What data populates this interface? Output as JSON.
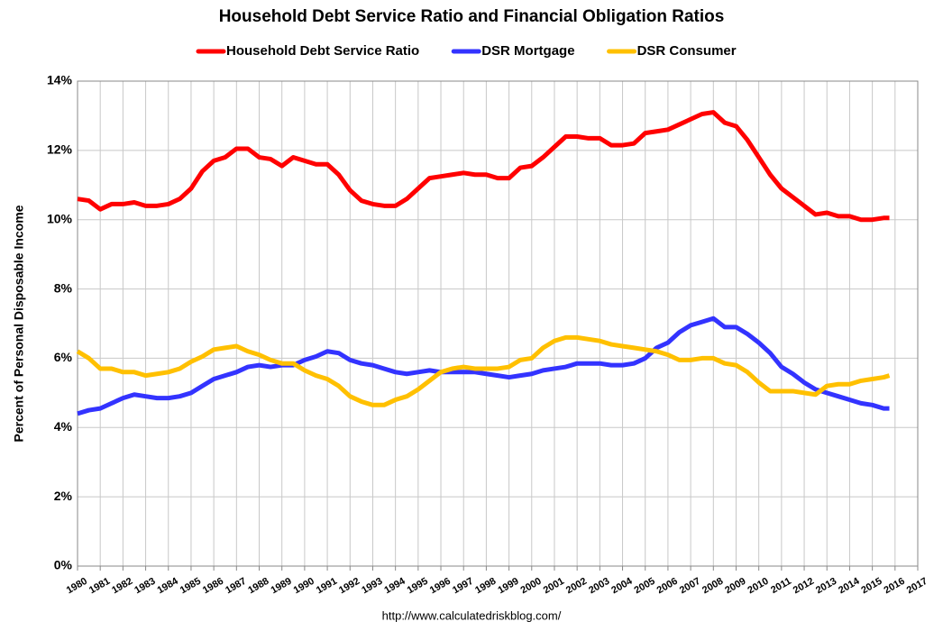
{
  "chart_data": {
    "type": "line",
    "title": "Household Debt Service Ratio and Financial Obligation Ratios",
    "ylabel": "Percent of Personal Disposable Income",
    "source": "http://www.calculatedriskblog.com/",
    "legend": "top",
    "grid": true,
    "xlim": [
      1980,
      2017
    ],
    "xticks": [
      1980,
      1981,
      1982,
      1983,
      1984,
      1985,
      1986,
      1987,
      1988,
      1989,
      1990,
      1991,
      1992,
      1993,
      1994,
      1995,
      1996,
      1997,
      1998,
      1999,
      2000,
      2001,
      2002,
      2003,
      2004,
      2005,
      2006,
      2007,
      2008,
      2009,
      2010,
      2011,
      2012,
      2013,
      2014,
      2015,
      2016,
      2017
    ],
    "ylim": [
      0,
      14
    ],
    "yticks": [
      {
        "value": 0,
        "label": "0%"
      },
      {
        "value": 2,
        "label": "2%"
      },
      {
        "value": 4,
        "label": "4%"
      },
      {
        "value": 6,
        "label": "6%"
      },
      {
        "value": 8,
        "label": "8%"
      },
      {
        "value": 10,
        "label": "10%"
      },
      {
        "value": 12,
        "label": "12%"
      },
      {
        "value": 14,
        "label": "14%"
      }
    ],
    "x": [
      1980,
      1980.5,
      1981,
      1981.5,
      1982,
      1982.5,
      1983,
      1983.5,
      1984,
      1984.5,
      1985,
      1985.5,
      1986,
      1986.5,
      1987,
      1987.5,
      1988,
      1988.5,
      1989,
      1989.5,
      1990,
      1990.5,
      1991,
      1991.5,
      1992,
      1992.5,
      1993,
      1993.5,
      1994,
      1994.5,
      1995,
      1995.5,
      1996,
      1996.5,
      1997,
      1997.5,
      1998,
      1998.5,
      1999,
      1999.5,
      2000,
      2000.5,
      2001,
      2001.5,
      2002,
      2002.5,
      2003,
      2003.5,
      2004,
      2004.5,
      2005,
      2005.5,
      2006,
      2006.5,
      2007,
      2007.5,
      2008,
      2008.5,
      2009,
      2009.5,
      2010,
      2010.5,
      2011,
      2011.5,
      2012,
      2012.5,
      2013,
      2013.5,
      2014,
      2014.5,
      2015,
      2015.5,
      2015.75
    ],
    "series": [
      {
        "name": "Household Debt Service Ratio",
        "color": "#ff0000",
        "values": [
          10.6,
          10.55,
          10.3,
          10.45,
          10.45,
          10.5,
          10.4,
          10.4,
          10.45,
          10.6,
          10.9,
          11.4,
          11.7,
          11.8,
          12.05,
          12.05,
          11.8,
          11.75,
          11.55,
          11.8,
          11.7,
          11.6,
          11.6,
          11.3,
          10.85,
          10.55,
          10.45,
          10.4,
          10.4,
          10.6,
          10.9,
          11.2,
          11.25,
          11.3,
          11.35,
          11.3,
          11.3,
          11.2,
          11.2,
          11.5,
          11.55,
          11.8,
          12.1,
          12.4,
          12.4,
          12.35,
          12.35,
          12.15,
          12.15,
          12.2,
          12.5,
          12.55,
          12.6,
          12.75,
          12.9,
          13.05,
          13.1,
          12.8,
          12.7,
          12.3,
          11.8,
          11.3,
          10.9,
          10.65,
          10.4,
          10.15,
          10.2,
          10.1,
          10.1,
          10.0,
          10.0,
          10.05,
          10.05
        ]
      },
      {
        "name": "DSR Mortgage",
        "color": "#3333ff",
        "values": [
          4.4,
          4.5,
          4.55,
          4.7,
          4.85,
          4.95,
          4.9,
          4.85,
          4.85,
          4.9,
          5.0,
          5.2,
          5.4,
          5.5,
          5.6,
          5.75,
          5.8,
          5.75,
          5.8,
          5.8,
          5.95,
          6.05,
          6.2,
          6.15,
          5.95,
          5.85,
          5.8,
          5.7,
          5.6,
          5.55,
          5.6,
          5.65,
          5.6,
          5.6,
          5.6,
          5.6,
          5.55,
          5.5,
          5.45,
          5.5,
          5.55,
          5.65,
          5.7,
          5.75,
          5.85,
          5.85,
          5.85,
          5.8,
          5.8,
          5.85,
          6.0,
          6.3,
          6.45,
          6.75,
          6.95,
          7.05,
          7.15,
          6.9,
          6.9,
          6.7,
          6.45,
          6.15,
          5.75,
          5.55,
          5.3,
          5.1,
          5.0,
          4.9,
          4.8,
          4.7,
          4.65,
          4.55,
          4.55
        ]
      },
      {
        "name": "DSR Consumer",
        "color": "#ffc000",
        "values": [
          6.2,
          6.0,
          5.7,
          5.7,
          5.6,
          5.6,
          5.5,
          5.55,
          5.6,
          5.7,
          5.9,
          6.05,
          6.25,
          6.3,
          6.35,
          6.2,
          6.1,
          5.95,
          5.85,
          5.85,
          5.65,
          5.5,
          5.4,
          5.2,
          4.9,
          4.75,
          4.65,
          4.65,
          4.8,
          4.9,
          5.1,
          5.35,
          5.6,
          5.7,
          5.75,
          5.7,
          5.7,
          5.7,
          5.75,
          5.95,
          6.0,
          6.3,
          6.5,
          6.6,
          6.6,
          6.55,
          6.5,
          6.4,
          6.35,
          6.3,
          6.25,
          6.2,
          6.1,
          5.95,
          5.95,
          6.0,
          6.0,
          5.85,
          5.8,
          5.6,
          5.3,
          5.05,
          5.05,
          5.05,
          5.0,
          4.95,
          5.2,
          5.25,
          5.25,
          5.35,
          5.4,
          5.45,
          5.5
        ]
      }
    ]
  }
}
